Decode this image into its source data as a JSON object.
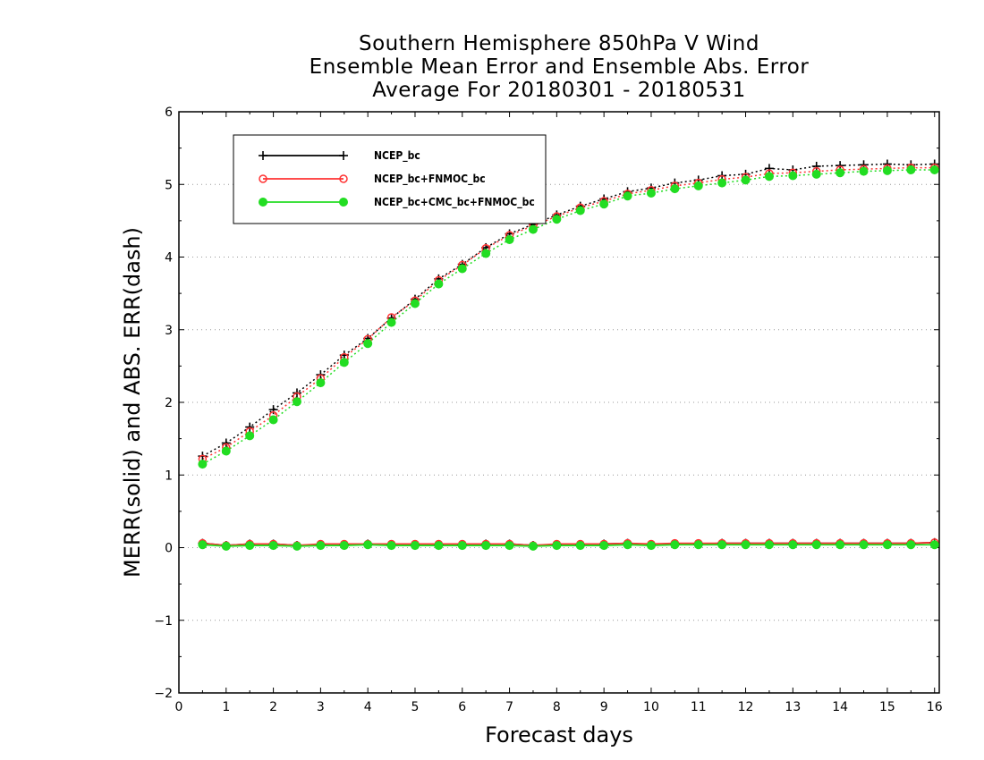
{
  "chart_data": {
    "type": "line",
    "title": [
      "Southern Hemisphere 850hPa V Wind",
      "Ensemble Mean Error and Ensemble Abs. Error",
      "Average For 20180301 - 20180531"
    ],
    "xlabel": "Forecast days",
    "ylabel": "MERR(solid) and ABS. ERR(dash)",
    "xlim": [
      0,
      16.1
    ],
    "ylim": [
      -2,
      6
    ],
    "xticks": [
      "0",
      "1",
      "2",
      "3",
      "4",
      "5",
      "6",
      "7",
      "8",
      "9",
      "10",
      "11",
      "12",
      "13",
      "14",
      "15",
      "16"
    ],
    "yticks": [
      "-2",
      "-1",
      "0",
      "1",
      "2",
      "3",
      "4",
      "5",
      "6"
    ],
    "grid": "horizontal dotted",
    "legend_position": "top-left",
    "x": [
      0.5,
      1,
      1.5,
      2,
      2.5,
      3,
      3.5,
      4,
      4.5,
      5,
      5.5,
      6,
      6.5,
      7,
      7.5,
      8,
      8.5,
      9,
      9.5,
      10,
      10.5,
      11,
      11.5,
      12,
      12.5,
      13,
      13.5,
      14,
      14.5,
      15,
      15.5,
      16
    ],
    "series": [
      {
        "name": "NCEP_bc",
        "color": "#000000",
        "marker": "plus",
        "abs_err": [
          1.26,
          1.44,
          1.66,
          1.9,
          2.13,
          2.38,
          2.65,
          2.88,
          3.16,
          3.42,
          3.7,
          3.9,
          4.13,
          4.32,
          4.45,
          4.58,
          4.7,
          4.8,
          4.9,
          4.95,
          5.02,
          5.06,
          5.12,
          5.14,
          5.22,
          5.2,
          5.25,
          5.26,
          5.27,
          5.28,
          5.27,
          5.28
        ],
        "mean_err": [
          0.06,
          0.03,
          0.05,
          0.05,
          0.03,
          0.04,
          0.04,
          0.05,
          0.04,
          0.04,
          0.04,
          0.04,
          0.05,
          0.05,
          0.03,
          0.04,
          0.04,
          0.05,
          0.06,
          0.04,
          0.05,
          0.05,
          0.06,
          0.06,
          0.06,
          0.06,
          0.06,
          0.06,
          0.06,
          0.06,
          0.06,
          0.07
        ]
      },
      {
        "name": "NCEP_bc+FNMOC_bc",
        "color": "#ff3333",
        "marker": "open-circle",
        "abs_err": [
          1.22,
          1.38,
          1.6,
          1.82,
          2.08,
          2.33,
          2.62,
          2.87,
          3.17,
          3.4,
          3.68,
          3.89,
          4.12,
          4.3,
          4.43,
          4.56,
          4.68,
          4.77,
          4.87,
          4.92,
          4.98,
          5.02,
          5.07,
          5.1,
          5.15,
          5.16,
          5.18,
          5.2,
          5.21,
          5.22,
          5.23,
          5.23
        ],
        "mean_err": [
          0.06,
          0.03,
          0.05,
          0.05,
          0.03,
          0.05,
          0.05,
          0.05,
          0.05,
          0.05,
          0.05,
          0.05,
          0.05,
          0.05,
          0.03,
          0.05,
          0.05,
          0.05,
          0.06,
          0.05,
          0.06,
          0.06,
          0.06,
          0.06,
          0.06,
          0.06,
          0.06,
          0.06,
          0.06,
          0.06,
          0.06,
          0.07
        ]
      },
      {
        "name": "NCEP_bc+CMC_bc+FNMOC_bc",
        "color": "#22dd22",
        "marker": "filled-circle",
        "abs_err": [
          1.15,
          1.33,
          1.54,
          1.76,
          2.01,
          2.27,
          2.55,
          2.81,
          3.1,
          3.36,
          3.63,
          3.84,
          4.05,
          4.24,
          4.38,
          4.52,
          4.64,
          4.73,
          4.84,
          4.88,
          4.94,
          4.98,
          5.02,
          5.06,
          5.11,
          5.12,
          5.14,
          5.16,
          5.18,
          5.19,
          5.2,
          5.2
        ],
        "mean_err": [
          0.04,
          0.02,
          0.03,
          0.03,
          0.02,
          0.03,
          0.03,
          0.04,
          0.03,
          0.03,
          0.03,
          0.03,
          0.03,
          0.03,
          0.02,
          0.03,
          0.03,
          0.03,
          0.04,
          0.03,
          0.04,
          0.04,
          0.04,
          0.04,
          0.04,
          0.04,
          0.04,
          0.04,
          0.04,
          0.04,
          0.04,
          0.04
        ]
      }
    ]
  }
}
